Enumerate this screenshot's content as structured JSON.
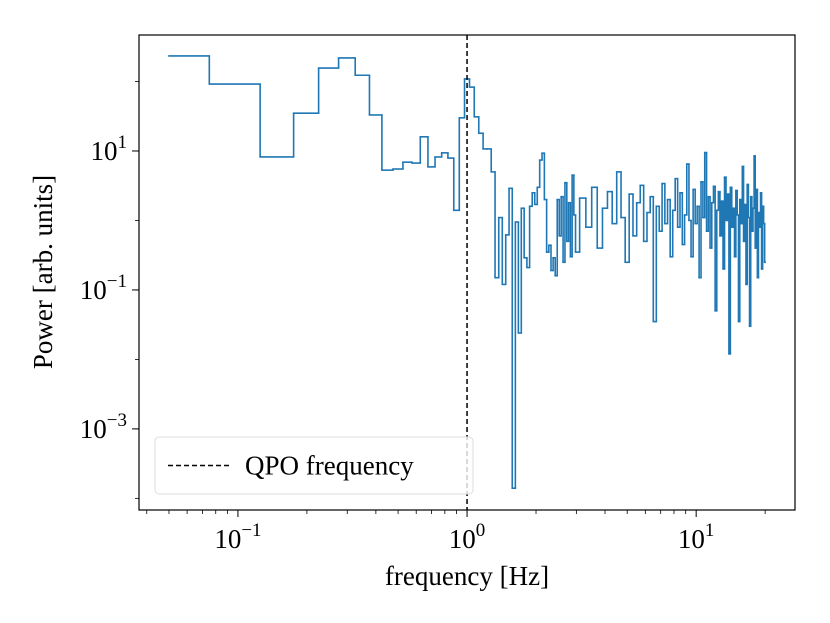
{
  "chart_data": {
    "type": "step",
    "xlabel": "frequency [Hz]",
    "ylabel": "Power [arb. units]",
    "xscale": "log",
    "yscale": "log",
    "xlim": [
      0.037,
      27
    ],
    "ylim": [
      6.8e-05,
      467
    ],
    "xticks": [
      {
        "value": 0.1,
        "label": "10",
        "exponent": "−1"
      },
      {
        "value": 1,
        "label": "10",
        "exponent": "0"
      },
      {
        "value": 10,
        "label": "10",
        "exponent": "1"
      }
    ],
    "yticks": [
      {
        "value": 0.001,
        "label": "10",
        "exponent": "−3"
      },
      {
        "value": 0.1,
        "label": "10",
        "exponent": "−1"
      },
      {
        "value": 10,
        "label": "10",
        "exponent": "1"
      }
    ],
    "color": "#1f77b4",
    "x": [
      0.05,
      0.1,
      0.15,
      0.2,
      0.25,
      0.3,
      0.35,
      0.4,
      0.45,
      0.5,
      0.55,
      0.6,
      0.65,
      0.7,
      0.75,
      0.8,
      0.85,
      0.9,
      0.95,
      1,
      1.05,
      1.1,
      1.15,
      1.2,
      1.25,
      1.3,
      1.35,
      1.4,
      1.45,
      1.5,
      1.55,
      1.6,
      1.65,
      1.7,
      1.75,
      1.8,
      1.85,
      1.9,
      1.95,
      2,
      2.05,
      2.1,
      2.15,
      2.2,
      2.25,
      2.3,
      2.35,
      2.4,
      2.45,
      2.5,
      2.55,
      2.6,
      2.65,
      2.7,
      2.75,
      2.8,
      2.85,
      2.9,
      2.95,
      3,
      3.2,
      3.4,
      3.6,
      3.8,
      4,
      4.2,
      4.4,
      4.6,
      4.8,
      5,
      5.2,
      5.4,
      5.6,
      5.8,
      6,
      6.2,
      6.4,
      6.6,
      6.8,
      7,
      7.2,
      7.4,
      7.6,
      7.8,
      8,
      8.2,
      8.4,
      8.6,
      8.8,
      9,
      9.2,
      9.4,
      9.6,
      9.8,
      10,
      10.2,
      10.4,
      10.6,
      10.8,
      11,
      11.2,
      11.4,
      11.6,
      11.8,
      12,
      12.2,
      12.4,
      12.6,
      12.8,
      13,
      13.2,
      13.4,
      13.6,
      13.8,
      14,
      14.2,
      14.4,
      14.6,
      14.8,
      15,
      15.2,
      15.4,
      15.6,
      15.8,
      16,
      16.2,
      16.4,
      16.6,
      16.8,
      17,
      17.2,
      17.4,
      17.6,
      17.8,
      18,
      18.2,
      18.4,
      18.6,
      18.8,
      19,
      19.2,
      19.4,
      19.6,
      19.8,
      20
    ],
    "values": [
      233,
      92,
      8.2,
      35,
      156,
      218,
      123,
      33,
      5.3,
      5.5,
      6.9,
      6.7,
      16,
      5.9,
      8.2,
      9.4,
      7.9,
      1.4,
      30,
      109,
      83,
      31,
      18,
      10.7,
      10.7,
      5,
      0.15,
      1.1,
      0.12,
      0.62,
      2.9,
      0.00014,
      0.95,
      0.024,
      1.5,
      0.29,
      0.21,
      1.6,
      2.5,
      1.7,
      3.0,
      7.4,
      9.3,
      2.0,
      0.35,
      0.44,
      0.19,
      0.29,
      0.16,
      2.0,
      0.6,
      2.2,
      0.25,
      3.5,
      0.5,
      1.8,
      0.3,
      4.5,
      1.2,
      0.35,
      2.1,
      0.8,
      3.0,
      0.4,
      1.5,
      2.6,
      0.9,
      5.0,
      1.1,
      0.25,
      2.4,
      0.6,
      1.8,
      3.2,
      0.5,
      1.3,
      2.2,
      0.035,
      1.6,
      0.7,
      3.4,
      0.9,
      2.0,
      0.3,
      1.4,
      4.0,
      0.8,
      2.5,
      0.45,
      1.2,
      6.5,
      1.0,
      0.3,
      2.8,
      0.9,
      1.6,
      0.15,
      3.6,
      1.1,
      9.5,
      0.7,
      2.2,
      0.4,
      1.8,
      3.1,
      0.05,
      1.4,
      2.6,
      0.6,
      1.9,
      0.2,
      4.2,
      1.0,
      2.4,
      0.012,
      3.0,
      0.8,
      1.5,
      0.3,
      2.7,
      1.2,
      0.035,
      2.0,
      0.9,
      6.0,
      0.5,
      1.7,
      0.12,
      3.3,
      1.1,
      0.03,
      2.2,
      0.7,
      1.5,
      8.5,
      0.4,
      2.8,
      0.15,
      1.3,
      0.8,
      2.5,
      0.2,
      1.6,
      0.9,
      0.25
    ],
    "vline": {
      "x": 1,
      "label": "QPO frequency",
      "color": "#000000",
      "style": "dashed"
    },
    "legend": "lower left"
  }
}
